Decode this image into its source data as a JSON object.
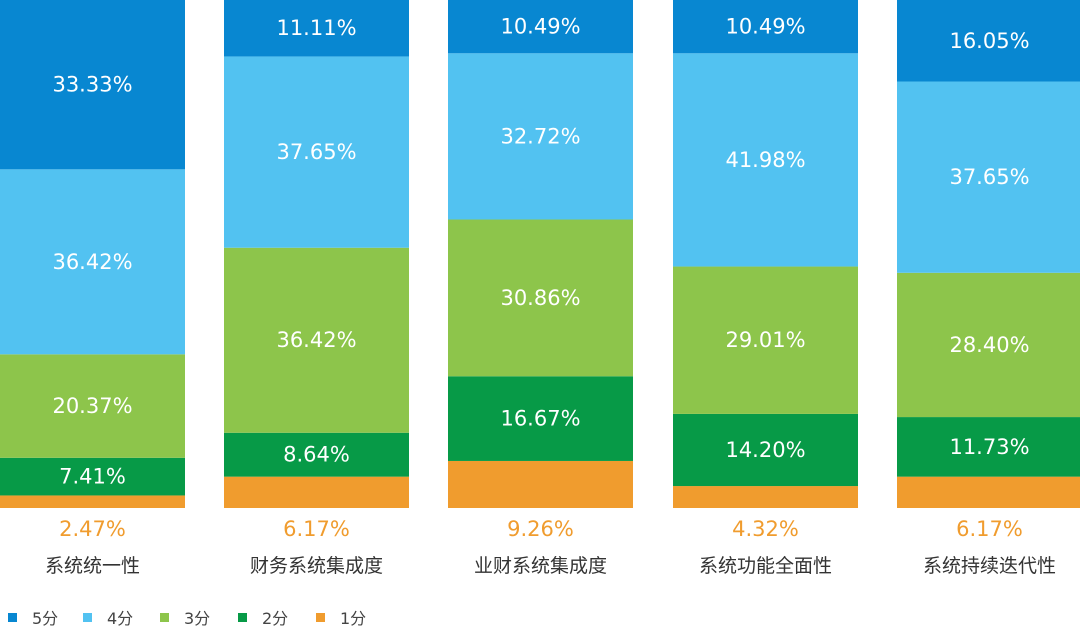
{
  "chart_data": {
    "type": "bar",
    "stacked": true,
    "normalized": true,
    "title": "",
    "xlabel": "",
    "ylabel": "",
    "ylim": [
      0,
      100
    ],
    "unit": "%",
    "categories": [
      "系统统一性",
      "财务系统集成度",
      "业财系统集成度",
      "系统功能全面性",
      "系统持续迭代性"
    ],
    "series": [
      {
        "name": "1分",
        "color": "#F09C2E",
        "values": [
          2.47,
          6.17,
          9.26,
          4.32,
          6.17
        ],
        "labels": [
          "2.47%",
          "6.17%",
          "9.26%",
          "4.32%",
          "6.17%"
        ]
      },
      {
        "name": "2分",
        "color": "#079A47",
        "values": [
          7.41,
          8.64,
          16.67,
          14.2,
          11.73
        ],
        "labels": [
          "7.41%",
          "8.64%",
          "16.67%",
          "14.20%",
          "11.73%"
        ]
      },
      {
        "name": "3分",
        "color": "#8DC54B",
        "values": [
          20.37,
          36.42,
          30.86,
          29.01,
          28.4
        ],
        "labels": [
          "20.37%",
          "36.42%",
          "30.86%",
          "29.01%",
          "28.40%"
        ]
      },
      {
        "name": "4分",
        "color": "#52C2F1",
        "values": [
          36.42,
          37.65,
          32.72,
          41.98,
          37.65
        ],
        "labels": [
          "36.42%",
          "37.65%",
          "32.72%",
          "41.98%",
          "37.65%"
        ]
      },
      {
        "name": "5分",
        "color": "#0887D1",
        "values": [
          33.33,
          11.11,
          10.49,
          10.49,
          16.05
        ],
        "labels": [
          "33.33%",
          "11.11%",
          "10.49%",
          "10.49%",
          "16.05%"
        ]
      }
    ],
    "legend": {
      "placement": "bottom-left",
      "order": [
        "5分",
        "4分",
        "3分",
        "2分",
        "1分"
      ]
    }
  }
}
